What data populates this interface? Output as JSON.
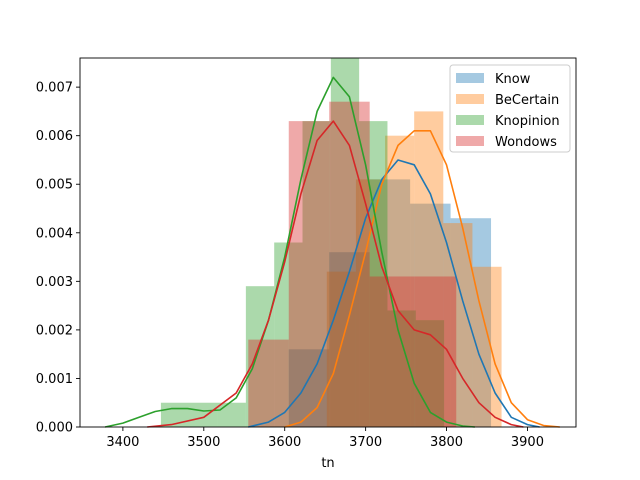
{
  "chart_data": {
    "type": "bar",
    "xlabel": "tn",
    "ylabel": "",
    "xlim": [
      3347,
      3960
    ],
    "ylim": [
      0,
      0.0076
    ],
    "x_ticks": [
      3400,
      3500,
      3600,
      3700,
      3800,
      3900
    ],
    "y_ticks": [
      0.0,
      0.001,
      0.002,
      0.003,
      0.004,
      0.005,
      0.006,
      0.007
    ],
    "y_tick_labels": [
      "0.000",
      "0.001",
      "0.002",
      "0.003",
      "0.004",
      "0.005",
      "0.006",
      "0.007"
    ],
    "grid": false,
    "legend_position": "top-right",
    "series": [
      {
        "name": "Know",
        "color": "#1f77b4",
        "bins": [
          {
            "x0": 3605,
            "x1": 3655,
            "value": 0.0016
          },
          {
            "x0": 3655,
            "x1": 3705,
            "value": 0.0036
          },
          {
            "x0": 3705,
            "x1": 3755,
            "value": 0.0051
          },
          {
            "x0": 3755,
            "x1": 3805,
            "value": 0.0046
          },
          {
            "x0": 3805,
            "x1": 3855,
            "value": 0.0043
          }
        ],
        "kde": [
          [
            3555,
            0
          ],
          [
            3580,
            0.0001
          ],
          [
            3600,
            0.0003
          ],
          [
            3620,
            0.0007
          ],
          [
            3640,
            0.0013
          ],
          [
            3660,
            0.0022
          ],
          [
            3680,
            0.0032
          ],
          [
            3700,
            0.0043
          ],
          [
            3720,
            0.0051
          ],
          [
            3740,
            0.0055
          ],
          [
            3760,
            0.0054
          ],
          [
            3780,
            0.0048
          ],
          [
            3800,
            0.0038
          ],
          [
            3820,
            0.0026
          ],
          [
            3840,
            0.0015
          ],
          [
            3860,
            0.0007
          ],
          [
            3880,
            0.0002
          ],
          [
            3900,
            5e-05
          ],
          [
            3915,
            0
          ]
        ]
      },
      {
        "name": "BeCertain",
        "color": "#ff7f0e",
        "bins": [
          {
            "x0": 3652,
            "x1": 3688,
            "value": 0.0032
          },
          {
            "x0": 3688,
            "x1": 3724,
            "value": 0.0051
          },
          {
            "x0": 3724,
            "x1": 3760,
            "value": 0.006
          },
          {
            "x0": 3760,
            "x1": 3796,
            "value": 0.0065
          },
          {
            "x0": 3796,
            "x1": 3832,
            "value": 0.0042
          },
          {
            "x0": 3832,
            "x1": 3868,
            "value": 0.0033
          }
        ],
        "kde": [
          [
            3600,
            0
          ],
          [
            3620,
            0.0001
          ],
          [
            3640,
            0.0004
          ],
          [
            3660,
            0.0011
          ],
          [
            3680,
            0.0023
          ],
          [
            3700,
            0.0036
          ],
          [
            3720,
            0.005
          ],
          [
            3740,
            0.0058
          ],
          [
            3760,
            0.0061
          ],
          [
            3780,
            0.0061
          ],
          [
            3800,
            0.0054
          ],
          [
            3820,
            0.0041
          ],
          [
            3840,
            0.0026
          ],
          [
            3860,
            0.0013
          ],
          [
            3880,
            0.0005
          ],
          [
            3900,
            0.00015
          ],
          [
            3920,
            3e-05
          ],
          [
            3940,
            0
          ]
        ]
      },
      {
        "name": "Knopinion",
        "color": "#2ca02c",
        "bins": [
          {
            "x0": 3447,
            "x1": 3517,
            "value": 0.0005
          },
          {
            "x0": 3517,
            "x1": 3552,
            "value": 0.0005
          },
          {
            "x0": 3552,
            "x1": 3587,
            "value": 0.0029
          },
          {
            "x0": 3587,
            "x1": 3622,
            "value": 0.0038
          },
          {
            "x0": 3622,
            "x1": 3657,
            "value": 0.0063
          },
          {
            "x0": 3657,
            "x1": 3692,
            "value": 0.0076
          },
          {
            "x0": 3692,
            "x1": 3727,
            "value": 0.0063
          },
          {
            "x0": 3727,
            "x1": 3762,
            "value": 0.0024
          },
          {
            "x0": 3762,
            "x1": 3797,
            "value": 0.0022
          }
        ],
        "kde": [
          [
            3378,
            0
          ],
          [
            3400,
            8e-05
          ],
          [
            3420,
            0.0002
          ],
          [
            3440,
            0.00032
          ],
          [
            3460,
            0.00038
          ],
          [
            3480,
            0.00038
          ],
          [
            3500,
            0.00033
          ],
          [
            3520,
            0.00035
          ],
          [
            3540,
            0.0006
          ],
          [
            3560,
            0.0012
          ],
          [
            3580,
            0.0022
          ],
          [
            3600,
            0.0035
          ],
          [
            3620,
            0.0051
          ],
          [
            3640,
            0.0065
          ],
          [
            3660,
            0.0072
          ],
          [
            3680,
            0.0068
          ],
          [
            3700,
            0.0054
          ],
          [
            3720,
            0.0036
          ],
          [
            3740,
            0.002
          ],
          [
            3760,
            0.0009
          ],
          [
            3780,
            0.0003
          ],
          [
            3800,
            0.0001
          ],
          [
            3820,
            2e-05
          ],
          [
            3835,
            0
          ]
        ]
      },
      {
        "name": "Wondows",
        "color": "#d62728",
        "bins": [
          {
            "x0": 3555,
            "x1": 3605,
            "value": 0.0018
          },
          {
            "x0": 3605,
            "x1": 3655,
            "value": 0.0063
          },
          {
            "x0": 3655,
            "x1": 3705,
            "value": 0.0067
          },
          {
            "x0": 3705,
            "x1": 3760,
            "value": 0.0031
          },
          {
            "x0": 3760,
            "x1": 3812,
            "value": 0.0031
          }
        ],
        "kde": [
          [
            3430,
            0
          ],
          [
            3460,
            5e-05
          ],
          [
            3500,
            0.0002
          ],
          [
            3540,
            0.0007
          ],
          [
            3560,
            0.0013
          ],
          [
            3580,
            0.0022
          ],
          [
            3600,
            0.0034
          ],
          [
            3620,
            0.0048
          ],
          [
            3640,
            0.0059
          ],
          [
            3660,
            0.0063
          ],
          [
            3680,
            0.0058
          ],
          [
            3700,
            0.0046
          ],
          [
            3720,
            0.0033
          ],
          [
            3740,
            0.0024
          ],
          [
            3760,
            0.002
          ],
          [
            3780,
            0.0019
          ],
          [
            3800,
            0.0016
          ],
          [
            3820,
            0.001
          ],
          [
            3840,
            0.0005
          ],
          [
            3860,
            0.0002
          ],
          [
            3880,
            5e-05
          ],
          [
            3895,
            0
          ]
        ]
      }
    ]
  }
}
